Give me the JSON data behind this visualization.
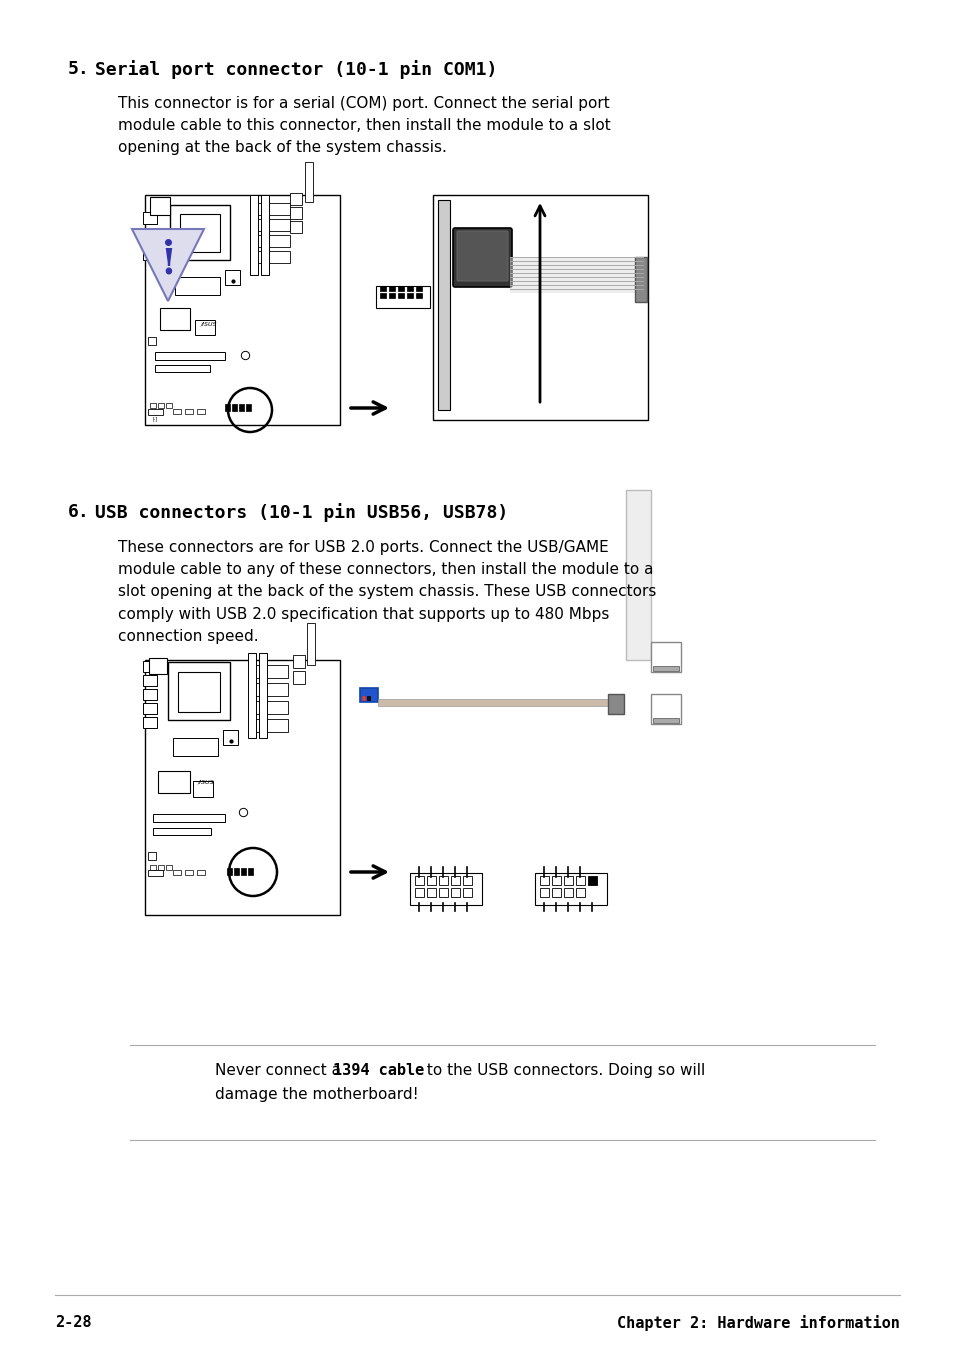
{
  "bg_color": "#ffffff",
  "section5_title_num": "5.",
  "section5_title_rest": "  Serial port connector (10-1 pin COM1)",
  "section5_body": "This connector is for a serial (COM) port. Connect the serial port\nmodule cable to this connector, then install the module to a slot\nopening at the back of the system chassis.",
  "section6_title_num": "6.",
  "section6_title_rest": "  USB connectors (10-1 pin USB56, USB78)",
  "section6_body": "These connectors are for USB 2.0 ports. Connect the USB/GAME\nmodule cable to any of these connectors, then install the module to a\nslot opening at the back of the system chassis. These USB connectors\ncomply with USB 2.0 specification that supports up to 480 Mbps\nconnection speed.",
  "footer_left": "2-28",
  "footer_right": "Chapter 2: Hardware information",
  "title_fontsize": 13,
  "body_fontsize": 11,
  "footer_fontsize": 11,
  "warning_fontsize": 11
}
